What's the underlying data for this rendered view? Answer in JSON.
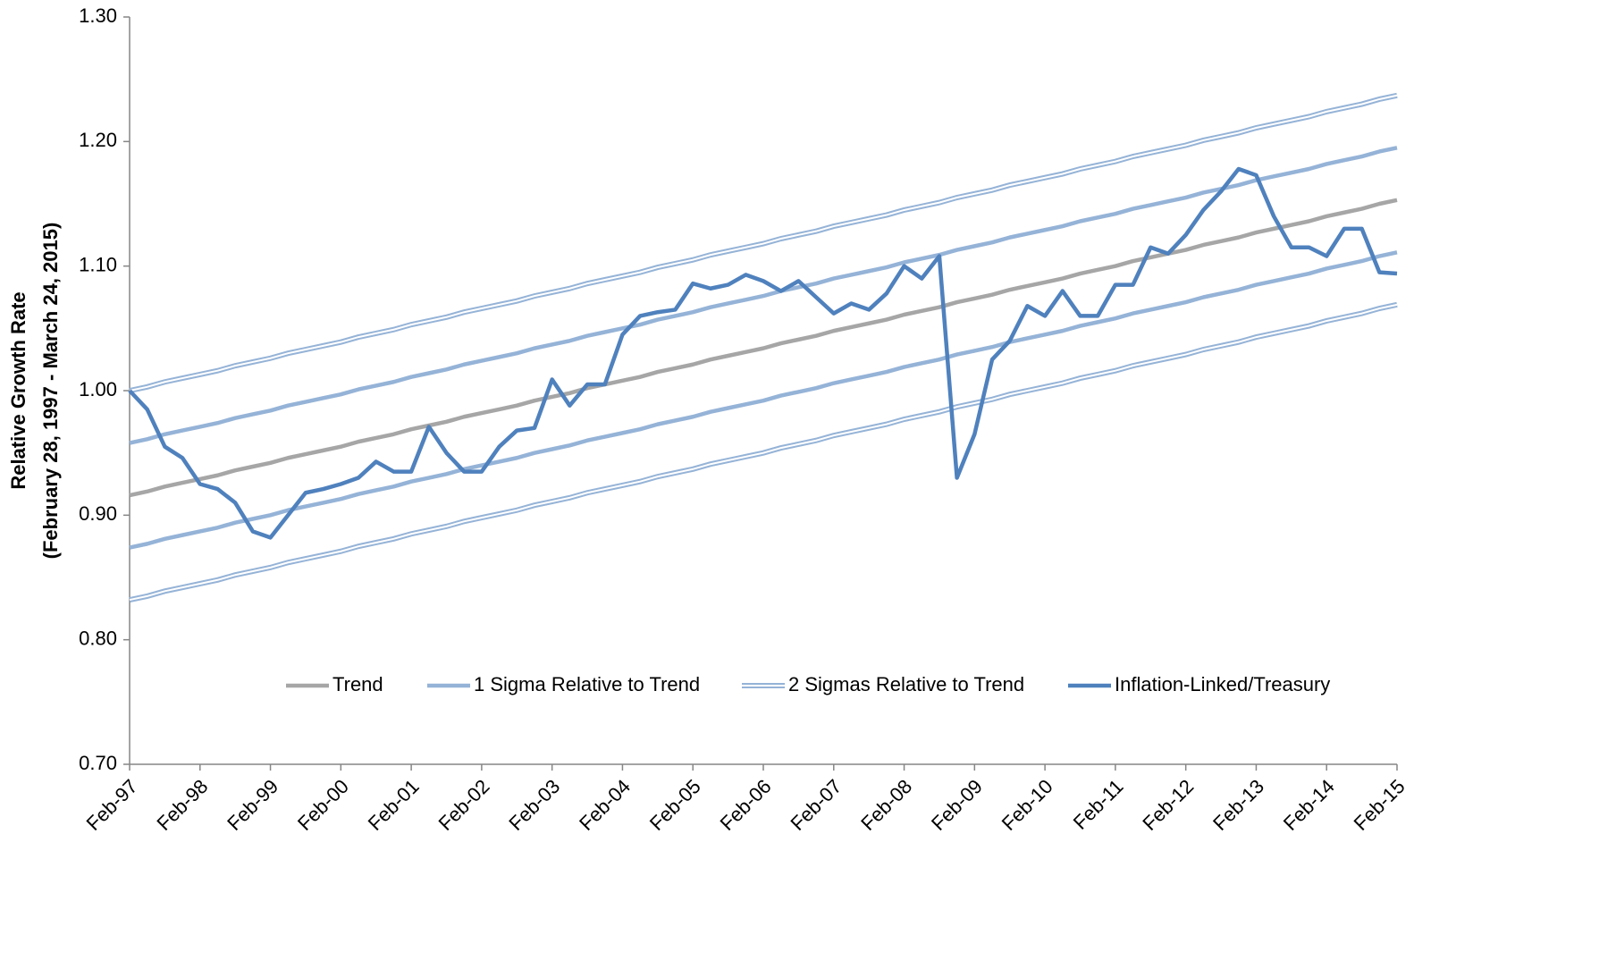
{
  "chart_data": {
    "type": "line",
    "ylabel": [
      "Relative Growth Rate",
      "(February 28, 1997 - March 24, 2015)"
    ],
    "categories": [
      "Feb-97",
      null,
      null,
      null,
      "Feb-98",
      null,
      null,
      null,
      "Feb-99",
      null,
      null,
      null,
      "Feb-00",
      null,
      null,
      null,
      "Feb-01",
      null,
      null,
      null,
      "Feb-02",
      null,
      null,
      null,
      "Feb-03",
      null,
      null,
      null,
      "Feb-04",
      null,
      null,
      null,
      "Feb-05",
      null,
      null,
      null,
      "Feb-06",
      null,
      null,
      null,
      "Feb-07",
      null,
      null,
      null,
      "Feb-08",
      null,
      null,
      null,
      "Feb-09",
      null,
      null,
      null,
      "Feb-10",
      null,
      null,
      null,
      "Feb-11",
      null,
      null,
      null,
      "Feb-12",
      null,
      null,
      null,
      "Feb-13",
      null,
      null,
      null,
      "Feb-14",
      null,
      null,
      null,
      "Feb-15"
    ],
    "ylim": [
      0.7,
      1.3
    ],
    "yticks": [
      {
        "value": 0.7,
        "label": "0.70"
      },
      {
        "value": 0.8,
        "label": "0.80"
      },
      {
        "value": 0.9,
        "label": "0.90"
      },
      {
        "value": 1.0,
        "label": "1.00"
      },
      {
        "value": 1.1,
        "label": "1.10"
      },
      {
        "value": 1.2,
        "label": "1.20"
      },
      {
        "value": 1.3,
        "label": "1.30"
      }
    ],
    "grid": false,
    "legend": "bottom",
    "series": [
      {
        "name": "Trend",
        "color": "#a6a6a6",
        "style": "solid",
        "values": [
          0.916,
          0.919,
          0.923,
          0.926,
          0.929,
          0.932,
          0.936,
          0.939,
          0.942,
          0.946,
          0.949,
          0.952,
          0.955,
          0.959,
          0.962,
          0.965,
          0.969,
          0.972,
          0.975,
          0.979,
          0.982,
          0.985,
          0.988,
          0.992,
          0.995,
          0.998,
          1.002,
          1.005,
          1.008,
          1.011,
          1.015,
          1.018,
          1.021,
          1.025,
          1.028,
          1.031,
          1.034,
          1.038,
          1.041,
          1.044,
          1.048,
          1.051,
          1.054,
          1.057,
          1.061,
          1.064,
          1.067,
          1.071,
          1.074,
          1.077,
          1.081,
          1.084,
          1.087,
          1.09,
          1.094,
          1.097,
          1.1,
          1.104,
          1.107,
          1.11,
          1.113,
          1.117,
          1.12,
          1.123,
          1.127,
          1.13,
          1.133,
          1.136,
          1.14,
          1.143,
          1.146,
          1.15,
          1.153
        ]
      },
      {
        "name": "1 Sigma Relative to Trend",
        "color": "#95b3d7",
        "style": "solid",
        "upper": [
          0.958,
          0.961,
          0.965,
          0.968,
          0.971,
          0.974,
          0.978,
          0.981,
          0.984,
          0.988,
          0.991,
          0.994,
          0.997,
          1.001,
          1.004,
          1.007,
          1.011,
          1.014,
          1.017,
          1.021,
          1.024,
          1.027,
          1.03,
          1.034,
          1.037,
          1.04,
          1.044,
          1.047,
          1.05,
          1.053,
          1.057,
          1.06,
          1.063,
          1.067,
          1.07,
          1.073,
          1.076,
          1.08,
          1.083,
          1.086,
          1.09,
          1.093,
          1.096,
          1.099,
          1.103,
          1.106,
          1.109,
          1.113,
          1.116,
          1.119,
          1.123,
          1.126,
          1.129,
          1.132,
          1.136,
          1.139,
          1.142,
          1.146,
          1.149,
          1.152,
          1.155,
          1.159,
          1.162,
          1.165,
          1.169,
          1.172,
          1.175,
          1.178,
          1.182,
          1.185,
          1.188,
          1.192,
          1.195
        ],
        "lower": [
          0.874,
          0.877,
          0.881,
          0.884,
          0.887,
          0.89,
          0.894,
          0.897,
          0.9,
          0.904,
          0.907,
          0.91,
          0.913,
          0.917,
          0.92,
          0.923,
          0.927,
          0.93,
          0.933,
          0.937,
          0.94,
          0.943,
          0.946,
          0.95,
          0.953,
          0.956,
          0.96,
          0.963,
          0.966,
          0.969,
          0.973,
          0.976,
          0.979,
          0.983,
          0.986,
          0.989,
          0.992,
          0.996,
          0.999,
          1.002,
          1.006,
          1.009,
          1.012,
          1.015,
          1.019,
          1.022,
          1.025,
          1.029,
          1.032,
          1.035,
          1.039,
          1.042,
          1.045,
          1.048,
          1.052,
          1.055,
          1.058,
          1.062,
          1.065,
          1.068,
          1.071,
          1.075,
          1.078,
          1.081,
          1.085,
          1.088,
          1.091,
          1.094,
          1.098,
          1.101,
          1.104,
          1.108,
          1.111
        ]
      },
      {
        "name": "2 Sigmas Relative to Trend",
        "color": "#95b3d7",
        "style": "double",
        "upper": [
          1.0,
          1.003,
          1.007,
          1.01,
          1.013,
          1.016,
          1.02,
          1.023,
          1.026,
          1.03,
          1.033,
          1.036,
          1.039,
          1.043,
          1.046,
          1.049,
          1.053,
          1.056,
          1.059,
          1.063,
          1.066,
          1.069,
          1.072,
          1.076,
          1.079,
          1.082,
          1.086,
          1.089,
          1.092,
          1.095,
          1.099,
          1.102,
          1.105,
          1.109,
          1.112,
          1.115,
          1.118,
          1.122,
          1.125,
          1.128,
          1.132,
          1.135,
          1.138,
          1.141,
          1.145,
          1.148,
          1.151,
          1.155,
          1.158,
          1.161,
          1.165,
          1.168,
          1.171,
          1.174,
          1.178,
          1.181,
          1.184,
          1.188,
          1.191,
          1.194,
          1.197,
          1.201,
          1.204,
          1.207,
          1.211,
          1.214,
          1.217,
          1.22,
          1.224,
          1.227,
          1.23,
          1.234,
          1.237
        ],
        "lower": [
          0.832,
          0.835,
          0.839,
          0.842,
          0.845,
          0.848,
          0.852,
          0.855,
          0.858,
          0.862,
          0.865,
          0.868,
          0.871,
          0.875,
          0.878,
          0.881,
          0.885,
          0.888,
          0.891,
          0.895,
          0.898,
          0.901,
          0.904,
          0.908,
          0.911,
          0.914,
          0.918,
          0.921,
          0.924,
          0.927,
          0.931,
          0.934,
          0.937,
          0.941,
          0.944,
          0.947,
          0.95,
          0.954,
          0.957,
          0.96,
          0.964,
          0.967,
          0.97,
          0.973,
          0.977,
          0.98,
          0.983,
          0.987,
          0.99,
          0.993,
          0.997,
          1.0,
          1.003,
          1.006,
          1.01,
          1.013,
          1.016,
          1.02,
          1.023,
          1.026,
          1.029,
          1.033,
          1.036,
          1.039,
          1.043,
          1.046,
          1.049,
          1.052,
          1.056,
          1.059,
          1.062,
          1.066,
          1.069
        ]
      },
      {
        "name": "Inflation-Linked/Treasury",
        "color": "#4f81bd",
        "style": "solid",
        "values": [
          1.0,
          0.985,
          0.955,
          0.946,
          0.925,
          0.921,
          0.91,
          0.887,
          0.882,
          0.9,
          0.918,
          0.921,
          0.925,
          0.93,
          0.943,
          0.935,
          0.935,
          0.971,
          0.95,
          0.935,
          0.935,
          0.955,
          0.968,
          0.97,
          1.009,
          0.988,
          1.005,
          1.005,
          1.045,
          1.06,
          1.063,
          1.065,
          1.086,
          1.082,
          1.085,
          1.093,
          1.088,
          1.08,
          1.088,
          1.075,
          1.062,
          1.07,
          1.065,
          1.078,
          1.1,
          1.09,
          1.108,
          0.93,
          0.965,
          1.025,
          1.04,
          1.068,
          1.06,
          1.08,
          1.06,
          1.06,
          1.085,
          1.085,
          1.115,
          1.11,
          1.125,
          1.145,
          1.16,
          1.178,
          1.173,
          1.14,
          1.115,
          1.115,
          1.108,
          1.13,
          1.13,
          1.095,
          1.094
        ]
      }
    ]
  }
}
